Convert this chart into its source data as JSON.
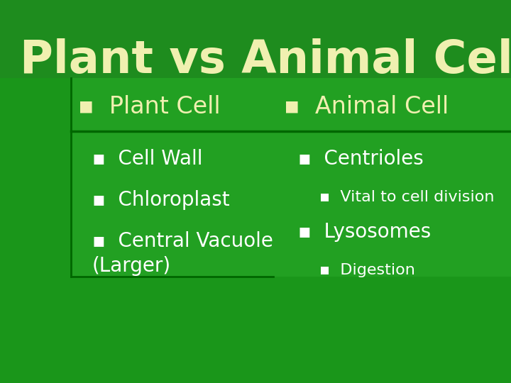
{
  "title": "Plant vs Animal Cell",
  "title_color": "#f0f0b0",
  "title_fontsize": 46,
  "bg_color": "#1e8c1e",
  "panel_color": "#22a022",
  "dark_panel_color": "#1a961a",
  "separator_color": "#006600",
  "left_header": "Plant Cell",
  "right_header": "Animal Cell",
  "header_color": "#f0f0b0",
  "item_color": "#ffffff",
  "left_items": [
    {
      "level": 1,
      "text": "Cell Wall"
    },
    {
      "level": 1,
      "text": "Chloroplast"
    },
    {
      "level": 1,
      "text": "Central Vacuole\n(Larger)"
    }
  ],
  "right_items": [
    {
      "level": 1,
      "text": "Centrioles"
    },
    {
      "level": 2,
      "text": "Vital to cell division"
    },
    {
      "level": 1,
      "text": "Lysosomes"
    },
    {
      "level": 2,
      "text": "Digestion"
    }
  ],
  "header_fontsize": 24,
  "item_fontsize": 20,
  "subitem_fontsize": 16
}
